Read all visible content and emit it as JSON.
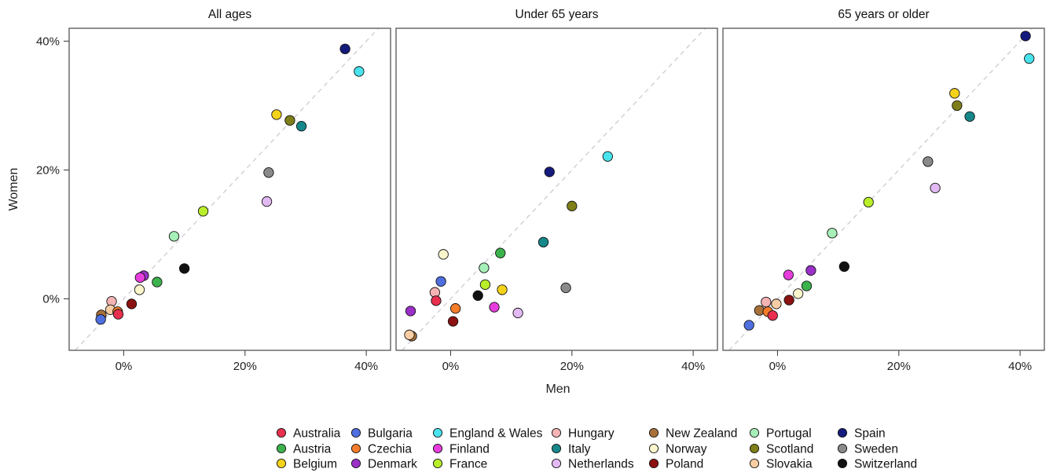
{
  "chart_data": {
    "type": "scatter",
    "xlabel": "Men",
    "ylabel": "Women",
    "xlim": [
      -9,
      44
    ],
    "ylim": [
      -8,
      42
    ],
    "ticks": [
      0,
      20,
      40
    ],
    "tick_labels": [
      "0%",
      "20%",
      "40%"
    ],
    "reference_line": "y = x",
    "grid": false,
    "legend_position": "bottom",
    "countries": [
      {
        "name": "Australia",
        "color": "#e8304e"
      },
      {
        "name": "Austria",
        "color": "#3cb24c"
      },
      {
        "name": "Belgium",
        "color": "#f5d21a"
      },
      {
        "name": "Bulgaria",
        "color": "#4f6fe0"
      },
      {
        "name": "Czechia",
        "color": "#f47c2a"
      },
      {
        "name": "Denmark",
        "color": "#9a30c8"
      },
      {
        "name": "England & Wales",
        "color": "#49e3ee"
      },
      {
        "name": "Finland",
        "color": "#e63ddc"
      },
      {
        "name": "France",
        "color": "#b9ee2a"
      },
      {
        "name": "Hungary",
        "color": "#f5b3b3"
      },
      {
        "name": "Italy",
        "color": "#16878a"
      },
      {
        "name": "Netherlands",
        "color": "#e2b9f2"
      },
      {
        "name": "New Zealand",
        "color": "#a8713a"
      },
      {
        "name": "Norway",
        "color": "#fbf6cc"
      },
      {
        "name": "Poland",
        "color": "#8c1212"
      },
      {
        "name": "Portugal",
        "color": "#a7efb8"
      },
      {
        "name": "Scotland",
        "color": "#7f7f1a"
      },
      {
        "name": "Slovakia",
        "color": "#f8cda4"
      },
      {
        "name": "Spain",
        "color": "#151a7d"
      },
      {
        "name": "Sweden",
        "color": "#8a8a8a"
      },
      {
        "name": "Switzerland",
        "color": "#111111"
      }
    ],
    "panels": [
      {
        "title": "All ages",
        "points": [
          {
            "country": "Spain",
            "x": 36.5,
            "y": 38.8
          },
          {
            "country": "England & Wales",
            "x": 38.8,
            "y": 35.3
          },
          {
            "country": "Belgium",
            "x": 25.2,
            "y": 28.6
          },
          {
            "country": "Scotland",
            "x": 27.4,
            "y": 27.7
          },
          {
            "country": "Italy",
            "x": 29.3,
            "y": 26.8
          },
          {
            "country": "Sweden",
            "x": 23.9,
            "y": 19.6
          },
          {
            "country": "Netherlands",
            "x": 23.6,
            "y": 15.1
          },
          {
            "country": "France",
            "x": 13.1,
            "y": 13.6
          },
          {
            "country": "Portugal",
            "x": 8.3,
            "y": 9.7
          },
          {
            "country": "Switzerland",
            "x": 10.0,
            "y": 4.7
          },
          {
            "country": "Denmark",
            "x": 3.3,
            "y": 3.6
          },
          {
            "country": "Finland",
            "x": 2.7,
            "y": 3.3
          },
          {
            "country": "Austria",
            "x": 5.5,
            "y": 2.6
          },
          {
            "country": "Norway",
            "x": 2.6,
            "y": 1.4
          },
          {
            "country": "Hungary",
            "x": -2.0,
            "y": -0.4
          },
          {
            "country": "Poland",
            "x": 1.3,
            "y": -0.8
          },
          {
            "country": "Slovakia",
            "x": -2.2,
            "y": -1.7
          },
          {
            "country": "Czechia",
            "x": -1.0,
            "y": -2.0
          },
          {
            "country": "Australia",
            "x": -0.9,
            "y": -2.4
          },
          {
            "country": "New Zealand",
            "x": -3.7,
            "y": -2.5
          },
          {
            "country": "Bulgaria",
            "x": -3.8,
            "y": -3.2
          }
        ]
      },
      {
        "title": "Under 65 years",
        "points": [
          {
            "country": "England & Wales",
            "x": 25.9,
            "y": 22.1
          },
          {
            "country": "Spain",
            "x": 16.3,
            "y": 19.7
          },
          {
            "country": "Scotland",
            "x": 20.0,
            "y": 14.4
          },
          {
            "country": "Italy",
            "x": 15.3,
            "y": 8.8
          },
          {
            "country": "Austria",
            "x": 8.2,
            "y": 7.1
          },
          {
            "country": "Norway",
            "x": -1.2,
            "y": 6.9
          },
          {
            "country": "Portugal",
            "x": 5.5,
            "y": 4.8
          },
          {
            "country": "Bulgaria",
            "x": -1.6,
            "y": 2.7
          },
          {
            "country": "France",
            "x": 5.7,
            "y": 2.2
          },
          {
            "country": "Sweden",
            "x": 19.0,
            "y": 1.7
          },
          {
            "country": "Belgium",
            "x": 8.5,
            "y": 1.4
          },
          {
            "country": "Hungary",
            "x": -2.6,
            "y": 1.0
          },
          {
            "country": "Switzerland",
            "x": 4.5,
            "y": 0.5
          },
          {
            "country": "Australia",
            "x": -2.4,
            "y": -0.3
          },
          {
            "country": "Finland",
            "x": 7.2,
            "y": -1.3
          },
          {
            "country": "Czechia",
            "x": 0.8,
            "y": -1.5
          },
          {
            "country": "Denmark",
            "x": -6.6,
            "y": -1.9
          },
          {
            "country": "Netherlands",
            "x": 11.1,
            "y": -2.2
          },
          {
            "country": "Poland",
            "x": 0.4,
            "y": -3.5
          },
          {
            "country": "New Zealand",
            "x": -6.4,
            "y": -5.8
          },
          {
            "country": "Slovakia",
            "x": -6.8,
            "y": -5.6
          }
        ]
      },
      {
        "title": "65 years or older",
        "points": [
          {
            "country": "Spain",
            "x": 40.9,
            "y": 40.8
          },
          {
            "country": "England & Wales",
            "x": 41.5,
            "y": 37.3
          },
          {
            "country": "Belgium",
            "x": 29.2,
            "y": 31.9
          },
          {
            "country": "Scotland",
            "x": 29.6,
            "y": 30.0
          },
          {
            "country": "Italy",
            "x": 31.7,
            "y": 28.3
          },
          {
            "country": "Sweden",
            "x": 24.8,
            "y": 21.3
          },
          {
            "country": "Netherlands",
            "x": 26.0,
            "y": 17.2
          },
          {
            "country": "France",
            "x": 15.0,
            "y": 15.0
          },
          {
            "country": "Portugal",
            "x": 9.0,
            "y": 10.2
          },
          {
            "country": "Switzerland",
            "x": 11.0,
            "y": 5.0
          },
          {
            "country": "Denmark",
            "x": 5.5,
            "y": 4.4
          },
          {
            "country": "Finland",
            "x": 1.8,
            "y": 3.7
          },
          {
            "country": "Austria",
            "x": 4.8,
            "y": 2.0
          },
          {
            "country": "Norway",
            "x": 3.4,
            "y": 0.8
          },
          {
            "country": "Poland",
            "x": 1.9,
            "y": -0.2
          },
          {
            "country": "Hungary",
            "x": -1.9,
            "y": -0.5
          },
          {
            "country": "Slovakia",
            "x": -0.2,
            "y": -0.8
          },
          {
            "country": "New Zealand",
            "x": -3.0,
            "y": -1.8
          },
          {
            "country": "Czechia",
            "x": -1.6,
            "y": -2.0
          },
          {
            "country": "Australia",
            "x": -0.8,
            "y": -2.6
          },
          {
            "country": "Bulgaria",
            "x": -4.7,
            "y": -4.1
          }
        ]
      }
    ]
  }
}
